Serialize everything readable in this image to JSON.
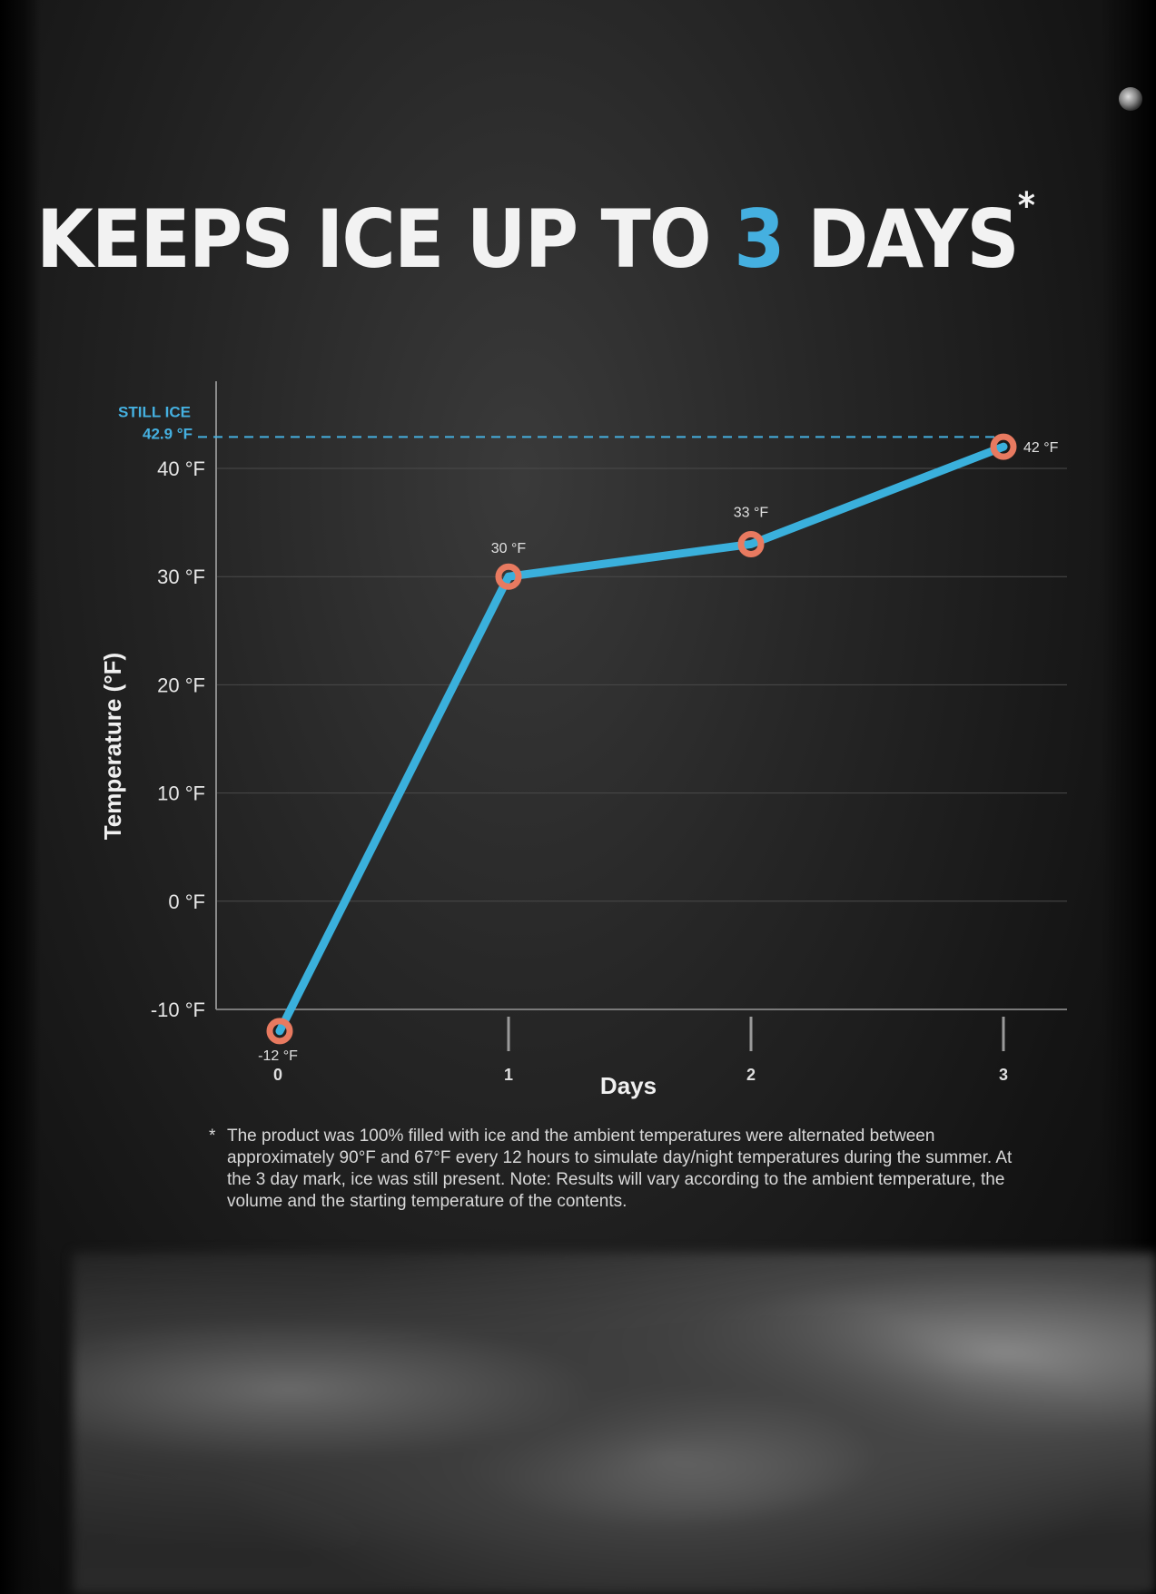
{
  "header": {
    "title_pre": "KEEPS ICE UP TO ",
    "title_accent": "3",
    "title_post": " DAYS",
    "title_star": "*",
    "accent_color": "#45b0e0"
  },
  "chart_data": {
    "type": "line",
    "title": "KEEPS ICE UP TO 3 DAYS*",
    "xlabel": "Days",
    "ylabel": "Temperature (°F)",
    "x": [
      0,
      1,
      2,
      3
    ],
    "x_ticks": [
      "0",
      "1",
      "2",
      "3"
    ],
    "y_ticks": [
      "-10 °F",
      "0 °F",
      "10 °F",
      "20 °F",
      "30 °F",
      "40 °F"
    ],
    "y_tick_values": [
      -10,
      0,
      10,
      20,
      30,
      40
    ],
    "ylim": [
      -10,
      43
    ],
    "grid": true,
    "series": [
      {
        "values": [
          -12,
          30,
          33,
          42
        ],
        "point_labels": [
          "-12 °F",
          "30 °F",
          "33 °F",
          "42 °F"
        ],
        "line_color": "#3ab0dc",
        "marker_color": "#e87a60"
      }
    ],
    "reference_line": {
      "value": 42.9,
      "label_top": "STILL ICE",
      "label_bottom": "42.9 °F",
      "color": "#45b0e0"
    }
  },
  "footnote": {
    "mark": "*",
    "text": "The product was 100% filled with ice and the ambient temperatures were alternated between approximately 90°F and 67°F every 12 hours to simulate day/night temperatures during the summer. At the 3 day mark, ice was still present. Note: Results will vary according to the ambient temperature, the volume and the starting temperature of the contents."
  }
}
